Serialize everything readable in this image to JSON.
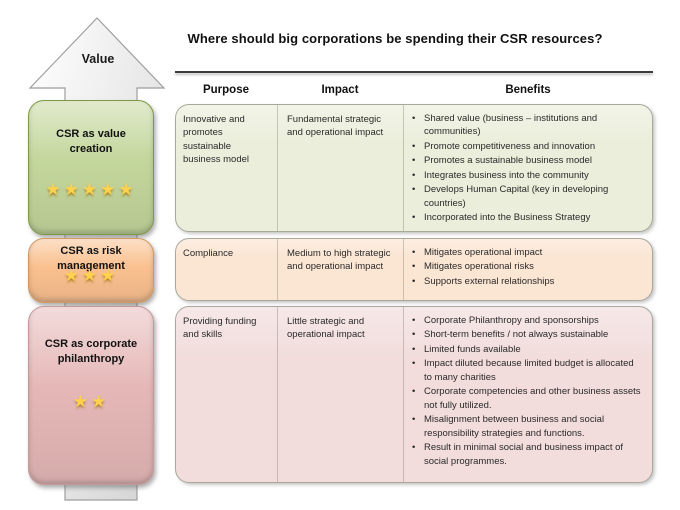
{
  "title": "Where should big corporations be spending their CSR resources?",
  "arrow": {
    "label": "Value"
  },
  "table": {
    "columns": {
      "purpose": "Purpose",
      "impact": "Impact",
      "benefits": "Benefits"
    },
    "rows": [
      {
        "label": "CSR as value creation",
        "stars": 5,
        "purpose": "Innovative and promotes sustainable business model",
        "impact": "Fundamental strategic and operational impact",
        "benefits": [
          "Shared value (business – institutions and communities)",
          "Promote competitiveness and innovation",
          "Promotes a sustainable business model",
          "Integrates business into the community",
          "Develops Human Capital (key in developing countries)",
          "Incorporated into the Business Strategy"
        ]
      },
      {
        "label": "CSR as risk management",
        "stars": 3,
        "purpose": "Compliance",
        "impact": "Medium to high strategic and operational impact",
        "benefits": [
          "Mitigates operational impact",
          "Mitigates operational risks",
          "Supports external relationships"
        ]
      },
      {
        "label": "CSR as corporate philanthropy",
        "stars": 2,
        "purpose": "Providing funding and skills",
        "impact": "Little strategic and operational impact",
        "benefits": [
          "Corporate Philanthropy and sponsorships",
          "Short-term benefits / not always sustainable",
          "Limited funds available",
          "Impact diluted because limited budget is allocated to many charities",
          "Corporate competencies and other business assets not fully utilized.",
          "Misalignment between business and social responsibility strategies and functions.",
          "Result in minimal social and business impact of social programmes."
        ]
      }
    ]
  },
  "colors": {
    "value_creation_box": "#c3d69b",
    "risk_management_box": "#fac08f",
    "philanthropy_box": "#e5b8b7",
    "value_creation_row": "#ebeedb",
    "risk_management_row": "#fbe5d3",
    "philanthropy_row": "#f2dcdc",
    "star_gold": "#ffd24d"
  }
}
